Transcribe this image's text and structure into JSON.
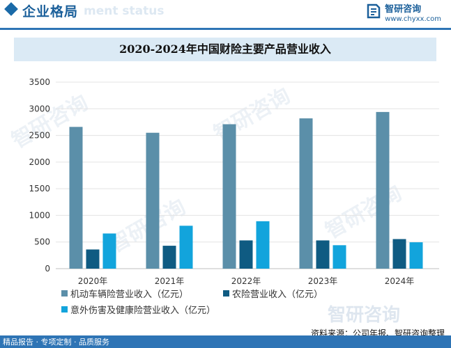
{
  "header": {
    "section_title": "企业格局",
    "section_watermark": "ment status",
    "brand_name": "智研咨询",
    "brand_url": "www.chyxx.com"
  },
  "chart_data": {
    "type": "bar",
    "title": "2020-2024年中国财险主要产品营业收入",
    "categories": [
      "2020年",
      "2021年",
      "2022年",
      "2023年",
      "2024年"
    ],
    "ylim": [
      0,
      3500
    ],
    "yticks": [
      0,
      500,
      1000,
      1500,
      2000,
      2500,
      3000,
      3500
    ],
    "grid": true,
    "legend_position": "bottom",
    "series": [
      {
        "name": "机动车辆险营业收入（亿元）",
        "color": "#5b8fa9",
        "values": [
          2660,
          2550,
          2710,
          2820,
          2940
        ]
      },
      {
        "name": "农险营业收入（亿元）",
        "color": "#0f5b82",
        "values": [
          360,
          430,
          530,
          530,
          555
        ]
      },
      {
        "name": "意外伤害及健康险营业收入（亿元）",
        "color": "#12a4dc",
        "values": [
          660,
          805,
          890,
          440,
          495
        ]
      }
    ]
  },
  "watermark": {
    "text": "智研咨询"
  },
  "source": "资料来源：公司年报、智研咨询整理",
  "footer": "精品报告 · 专项定制 · 品质服务"
}
